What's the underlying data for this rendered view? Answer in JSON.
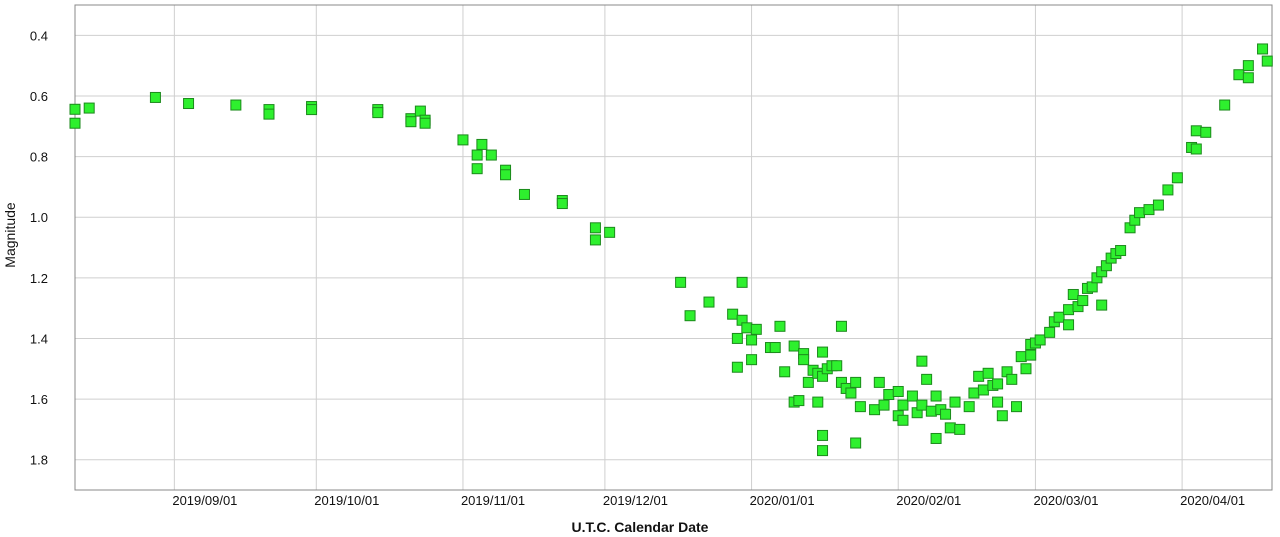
{
  "chart_data": {
    "type": "scatter",
    "x_label": "U.T.C. Calendar Date",
    "y_label": "Magnitude",
    "color": "#2ef02e",
    "grid": true,
    "xlim": [
      "2019/08/11",
      "2020/04/20"
    ],
    "xticks": [
      "2019/09/01",
      "2019/10/01",
      "2019/11/01",
      "2019/12/01",
      "2020/01/01",
      "2020/02/01",
      "2020/03/01",
      "2020/04/01"
    ],
    "ylim": [
      1.9,
      0.3
    ],
    "yticks": [
      0.4,
      0.6,
      0.8,
      {
        "value": 1,
        "label": "1.0"
      },
      1.2,
      1.4,
      1.6,
      1.8
    ],
    "x": [
      "2019/08/11",
      "2019/08/11",
      "2019/08/14",
      "2019/08/28",
      "2019/09/04",
      "2019/09/14",
      "2019/09/21",
      "2019/09/21",
      "2019/09/30",
      "2019/09/30",
      "2019/10/14",
      "2019/10/14",
      "2019/10/21",
      "2019/10/21",
      "2019/10/23",
      "2019/10/24",
      "2019/10/24",
      "2019/11/01",
      "2019/11/04",
      "2019/11/04",
      "2019/11/05",
      "2019/11/07",
      "2019/11/10",
      "2019/11/10",
      "2019/11/14",
      "2019/11/22",
      "2019/11/22",
      "2019/11/29",
      "2019/11/29",
      "2019/12/02",
      "2019/12/17",
      "2019/12/19",
      "2019/12/23",
      "2019/12/28",
      "2019/12/29",
      "2019/12/29",
      "2019/12/30",
      "2019/12/30",
      "2019/12/31",
      "2020/01/01",
      "2020/01/01",
      "2020/01/02",
      "2020/01/05",
      "2020/01/06",
      "2020/01/07",
      "2020/01/08",
      "2020/01/10",
      "2020/01/10",
      "2020/01/11",
      "2020/01/12",
      "2020/01/12",
      "2020/01/13",
      "2020/01/14",
      "2020/01/15",
      "2020/01/15",
      "2020/01/16",
      "2020/01/16",
      "2020/01/16",
      "2020/01/16",
      "2020/01/17",
      "2020/01/18",
      "2020/01/19",
      "2020/01/20",
      "2020/01/20",
      "2020/01/21",
      "2020/01/22",
      "2020/01/23",
      "2020/01/23",
      "2020/01/24",
      "2020/01/27",
      "2020/01/28",
      "2020/01/29",
      "2020/01/30",
      "2020/02/01",
      "2020/02/01",
      "2020/02/02",
      "2020/02/02",
      "2020/02/04",
      "2020/02/05",
      "2020/02/06",
      "2020/02/06",
      "2020/02/07",
      "2020/02/08",
      "2020/02/09",
      "2020/02/09",
      "2020/02/10",
      "2020/02/11",
      "2020/02/12",
      "2020/02/13",
      "2020/02/14",
      "2020/02/16",
      "2020/02/17",
      "2020/02/18",
      "2020/02/19",
      "2020/02/20",
      "2020/02/21",
      "2020/02/22",
      "2020/02/22",
      "2020/02/23",
      "2020/02/24",
      "2020/02/25",
      "2020/02/26",
      "2020/02/27",
      "2020/02/28",
      "2020/02/29",
      "2020/02/29",
      "2020/03/01",
      "2020/03/02",
      "2020/03/04",
      "2020/03/05",
      "2020/03/06",
      "2020/03/08",
      "2020/03/08",
      "2020/03/09",
      "2020/03/10",
      "2020/03/11",
      "2020/03/12",
      "2020/03/13",
      "2020/03/14",
      "2020/03/15",
      "2020/03/15",
      "2020/03/16",
      "2020/03/17",
      "2020/03/18",
      "2020/03/19",
      "2020/03/21",
      "2020/03/22",
      "2020/03/23",
      "2020/03/25",
      "2020/03/27",
      "2020/03/29",
      "2020/03/31",
      "2020/04/03",
      "2020/04/04",
      "2020/04/04",
      "2020/04/06",
      "2020/04/10",
      "2020/04/13",
      "2020/04/15",
      "2020/04/15",
      "2020/04/18",
      "2020/04/19"
    ],
    "values": [
      0.644,
      0.69,
      0.64,
      0.605,
      0.625,
      0.63,
      0.645,
      0.66,
      0.635,
      0.645,
      0.645,
      0.655,
      0.675,
      0.685,
      0.65,
      0.68,
      0.69,
      0.745,
      0.795,
      0.84,
      0.76,
      0.795,
      0.845,
      0.86,
      0.925,
      0.945,
      0.955,
      1.035,
      1.075,
      1.05,
      1.215,
      1.325,
      1.28,
      1.32,
      1.4,
      1.495,
      1.215,
      1.34,
      1.365,
      1.405,
      1.47,
      1.37,
      1.43,
      1.43,
      1.36,
      1.51,
      1.425,
      1.61,
      1.605,
      1.45,
      1.47,
      1.545,
      1.505,
      1.515,
      1.61,
      1.525,
      1.72,
      1.77,
      1.445,
      1.5,
      1.49,
      1.49,
      1.36,
      1.545,
      1.565,
      1.58,
      1.545,
      1.745,
      1.625,
      1.635,
      1.545,
      1.62,
      1.585,
      1.655,
      1.575,
      1.62,
      1.67,
      1.59,
      1.645,
      1.475,
      1.62,
      1.535,
      1.64,
      1.59,
      1.73,
      1.635,
      1.65,
      1.695,
      1.61,
      1.7,
      1.625,
      1.58,
      1.525,
      1.57,
      1.515,
      1.555,
      1.55,
      1.61,
      1.655,
      1.51,
      1.535,
      1.625,
      1.46,
      1.5,
      1.455,
      1.42,
      1.415,
      1.405,
      1.38,
      1.345,
      1.33,
      1.305,
      1.355,
      1.255,
      1.295,
      1.275,
      1.235,
      1.23,
      1.2,
      1.29,
      1.18,
      1.16,
      1.135,
      1.12,
      1.11,
      1.035,
      1.01,
      0.985,
      0.975,
      0.96,
      0.91,
      0.87,
      0.77,
      0.715,
      0.775,
      0.72,
      0.63,
      0.53,
      0.5,
      0.54,
      0.445,
      0.485
    ]
  }
}
